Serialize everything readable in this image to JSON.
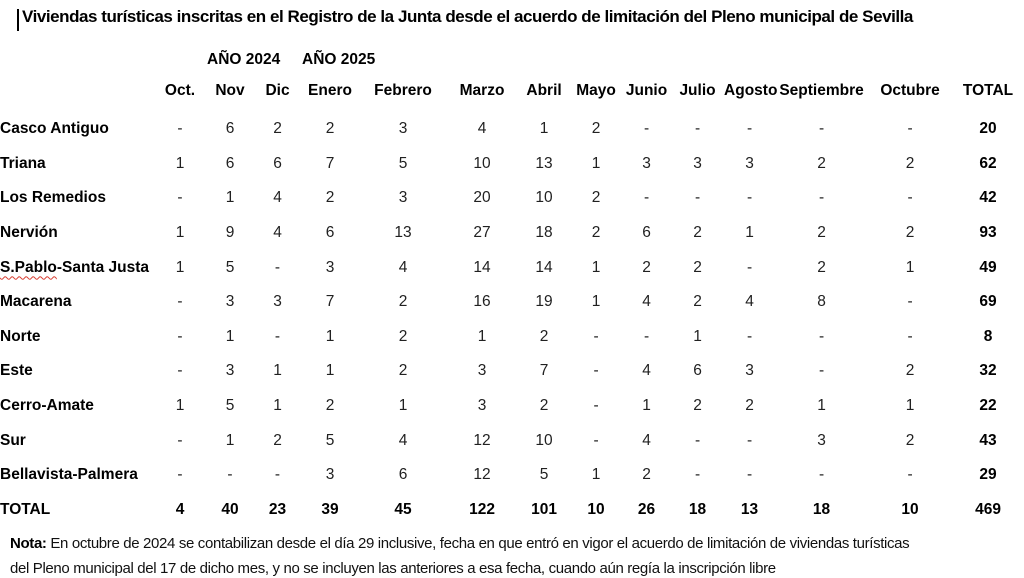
{
  "title": "Viviendas turísticas inscritas en el Registro de la Junta desde el acuerdo de limitación del Pleno municipal de Sevilla",
  "year_labels": {
    "y2024": "AÑO 2024",
    "y2025": "AÑO 2025"
  },
  "table": {
    "columns": [
      "Oct.",
      "Nov",
      "Dic",
      "Enero",
      "Febrero",
      "Marzo",
      "Abril",
      "Mayo",
      "Junio",
      "Julio",
      "Agosto",
      "Septiembre",
      "Octubre",
      "TOTAL"
    ],
    "rows": [
      {
        "label": "Casco Antiguo",
        "values": [
          "-",
          "6",
          "2",
          "2",
          "3",
          "4",
          "1",
          "2",
          "-",
          "-",
          "-",
          "-",
          "-",
          "20"
        ]
      },
      {
        "label": "Triana",
        "values": [
          "1",
          "6",
          "6",
          "7",
          "5",
          "10",
          "13",
          "1",
          "3",
          "3",
          "3",
          "2",
          "2",
          "62"
        ]
      },
      {
        "label": "Los Remedios",
        "values": [
          "-",
          "1",
          "4",
          "2",
          "3",
          "20",
          "10",
          "2",
          "-",
          "-",
          "-",
          "-",
          "-",
          "42"
        ]
      },
      {
        "label": "Nervión",
        "values": [
          "1",
          "9",
          "4",
          "6",
          "13",
          "27",
          "18",
          "2",
          "6",
          "2",
          "1",
          "2",
          "2",
          "93"
        ]
      },
      {
        "label": "S.Pablo-Santa Justa",
        "spellcheck": {
          "underlined": "S.Pablo",
          "rest": "-Santa Justa"
        },
        "values": [
          "1",
          "5",
          "-",
          "3",
          "4",
          "14",
          "14",
          "1",
          "2",
          "2",
          "-",
          "2",
          "1",
          "49"
        ]
      },
      {
        "label": "Macarena",
        "values": [
          "-",
          "3",
          "3",
          "7",
          "2",
          "16",
          "19",
          "1",
          "4",
          "2",
          "4",
          "8",
          "-",
          "69"
        ]
      },
      {
        "label": "Norte",
        "values": [
          "-",
          "1",
          "-",
          "1",
          "2",
          "1",
          "2",
          "-",
          "-",
          "1",
          "-",
          "-",
          "-",
          "8"
        ]
      },
      {
        "label": "Este",
        "values": [
          "-",
          "3",
          "1",
          "1",
          "2",
          "3",
          "7",
          "-",
          "4",
          "6",
          "3",
          "-",
          "2",
          "32"
        ]
      },
      {
        "label": "Cerro-Amate",
        "values": [
          "1",
          "5",
          "1",
          "2",
          "1",
          "3",
          "2",
          "-",
          "1",
          "2",
          "2",
          "1",
          "1",
          "22"
        ]
      },
      {
        "label": "Sur",
        "values": [
          "-",
          "1",
          "2",
          "5",
          "4",
          "12",
          "10",
          "-",
          "4",
          "-",
          "-",
          "3",
          "2",
          "43"
        ]
      },
      {
        "label": "Bellavista-Palmera",
        "values": [
          "-",
          "-",
          "-",
          "3",
          "6",
          "12",
          "5",
          "1",
          "2",
          "-",
          "-",
          "-",
          "-",
          "29"
        ]
      },
      {
        "label": "TOTAL",
        "is_total": true,
        "values": [
          "4",
          "40",
          "23",
          "39",
          "45",
          "122",
          "101",
          "10",
          "26",
          "18",
          "13",
          "18",
          "10",
          "469"
        ]
      }
    ]
  },
  "note": {
    "label": "Nota:",
    "line1": " En octubre de 2024 se contabilizan desde el día 29 inclusive, fecha en que entró en vigor el acuerdo de limitación de viviendas turísticas",
    "line2": "del Pleno municipal del 17 de dicho mes, y no se incluyen las anteriores a esa fecha, cuando aún regía la inscripción libre"
  },
  "colors": {
    "background": "#ffffff",
    "text": "#000000",
    "values": "#212121",
    "spellcheck_underline": "#d83b2f"
  }
}
